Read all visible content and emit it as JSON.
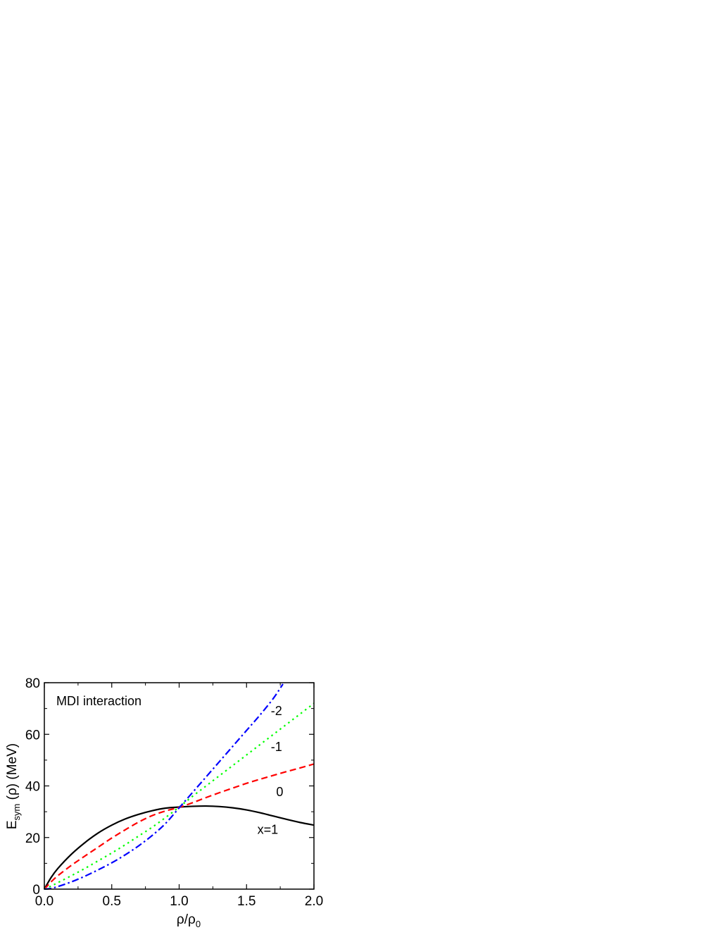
{
  "chart_data": {
    "type": "line",
    "annotation": "MDI interaction",
    "xlabel": {
      "main": "ρ/ρ",
      "sub": "0"
    },
    "ylabel": {
      "pre": "E",
      "sub": "sym",
      "post": " (ρ) (MeV)"
    },
    "xlim": [
      0,
      2
    ],
    "ylim": [
      0,
      80
    ],
    "xticks": [
      0.0,
      0.5,
      1.0,
      1.5,
      2.0
    ],
    "xtick_labels": [
      "0.0",
      "0.5",
      "1.0",
      "1.5",
      "2.0"
    ],
    "yticks": [
      0,
      20,
      40,
      60,
      80
    ],
    "ytick_labels": [
      "0",
      "20",
      "40",
      "60",
      "80"
    ],
    "grid": false,
    "series": [
      {
        "name": "x=1",
        "color": "#000000",
        "dash": "solid",
        "x": [
          0,
          0.05,
          0.1,
          0.2,
          0.3,
          0.4,
          0.5,
          0.6,
          0.7,
          0.8,
          0.9,
          1.0,
          1.1,
          1.2,
          1.3,
          1.4,
          1.5,
          1.6,
          1.7,
          1.8,
          1.9,
          2.0
        ],
        "y": [
          0,
          4.5,
          8.0,
          13.5,
          18.0,
          21.8,
          24.8,
          27.2,
          29.0,
          30.4,
          31.4,
          31.8,
          32.1,
          32.2,
          32.0,
          31.5,
          30.7,
          29.6,
          28.3,
          27.0,
          25.8,
          24.8
        ]
      },
      {
        "name": "0",
        "color": "#ff0000",
        "dash": "dashed",
        "x": [
          0,
          0.05,
          0.1,
          0.2,
          0.3,
          0.4,
          0.5,
          0.6,
          0.7,
          0.8,
          0.9,
          1.0,
          1.1,
          1.2,
          1.3,
          1.4,
          1.5,
          1.6,
          1.7,
          1.8,
          1.9,
          2.0
        ],
        "y": [
          0,
          2.8,
          5.2,
          9.2,
          12.8,
          16.3,
          19.8,
          23.0,
          26.0,
          28.5,
          30.3,
          31.7,
          33.5,
          35.5,
          37.4,
          39.2,
          41.0,
          42.6,
          44.1,
          45.6,
          47.0,
          48.5
        ]
      },
      {
        "name": "-1",
        "color": "#00ff00",
        "dash": "dotted",
        "x": [
          0,
          0.05,
          0.1,
          0.2,
          0.3,
          0.4,
          0.5,
          0.6,
          0.7,
          0.8,
          0.9,
          1.0,
          1.1,
          1.2,
          1.3,
          1.4,
          1.5,
          1.6,
          1.7,
          1.8,
          1.9,
          2.0
        ],
        "y": [
          0,
          1.2,
          2.5,
          5.2,
          8.0,
          11.0,
          14.0,
          17.2,
          20.6,
          24.0,
          27.8,
          31.8,
          36.0,
          40.0,
          44.0,
          48.0,
          52.0,
          56.0,
          60.0,
          64.0,
          68.0,
          72.0
        ]
      },
      {
        "name": "-2",
        "color": "#0000ff",
        "dash": "dashdot",
        "x": [
          0,
          0.05,
          0.1,
          0.2,
          0.3,
          0.4,
          0.5,
          0.6,
          0.7,
          0.8,
          0.9,
          1.0,
          1.1,
          1.2,
          1.3,
          1.4,
          1.5,
          1.6,
          1.7,
          1.77
        ],
        "y": [
          0,
          0.3,
          1.0,
          2.8,
          5.0,
          7.5,
          10.2,
          13.3,
          16.8,
          20.8,
          25.5,
          31.5,
          37.5,
          43.5,
          49.5,
          55.5,
          61.5,
          67.5,
          74.0,
          79.5
        ]
      }
    ],
    "curve_labels": [
      {
        "text": "-2",
        "x": 1.68,
        "y": 67.5
      },
      {
        "text": "-1",
        "x": 1.68,
        "y": 53.5
      },
      {
        "text": "0",
        "x": 1.72,
        "y": 36.0
      },
      {
        "text": "x=1",
        "x": 1.58,
        "y": 21.5
      }
    ]
  }
}
